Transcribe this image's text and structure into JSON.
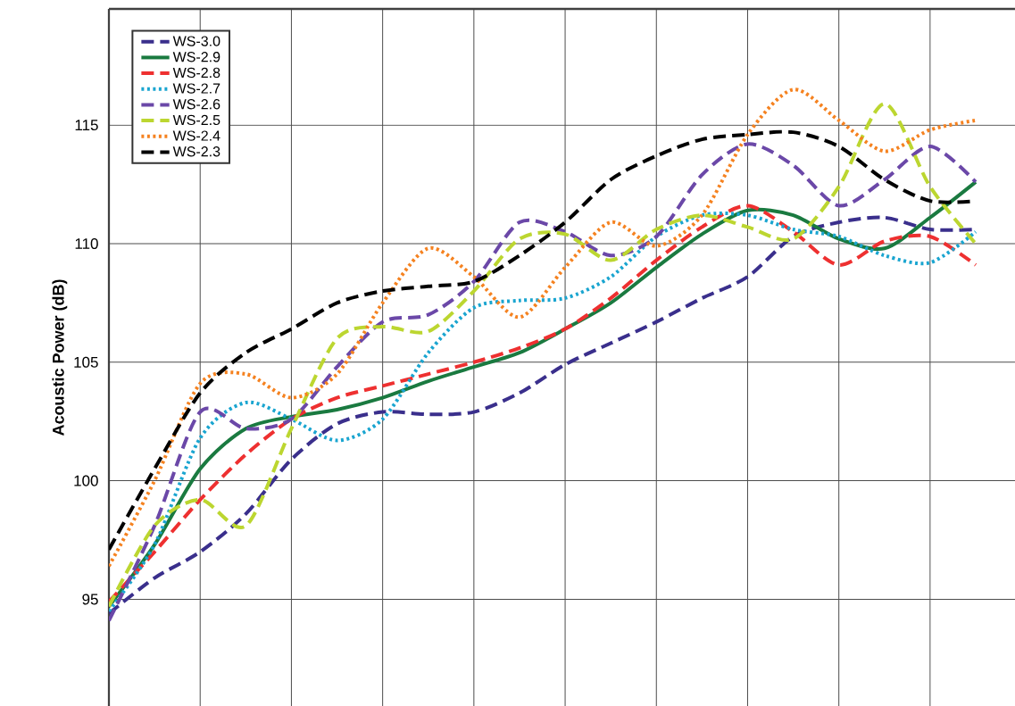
{
  "chart_data": {
    "type": "line",
    "ylabel": "Acoustic Power (dB)",
    "categories": [
      null,
      null,
      null,
      null,
      null,
      null,
      null,
      null,
      null,
      null,
      null,
      null,
      null,
      null,
      null,
      null,
      null,
      null,
      null,
      null
    ],
    "ylim": [
      90.5,
      119.9
    ],
    "yticks": [
      95,
      100,
      105,
      110,
      115
    ],
    "grid": true,
    "legend": "top left",
    "tick_labels": "y",
    "marker": "none",
    "series": [
      {
        "name": "WS-3.0",
        "color": "#3a2f8c",
        "line_style": "dashed",
        "values": [
          94.4,
          95.9,
          97.0,
          98.6,
          100.9,
          102.4,
          102.9,
          102.8,
          102.9,
          103.7,
          104.9,
          105.8,
          106.7,
          107.7,
          108.6,
          110.3,
          110.9,
          111.1,
          110.6,
          110.6
        ]
      },
      {
        "name": "WS-2.9",
        "color": "#1a7a40",
        "line_style": "solid",
        "values": [
          94.7,
          97.3,
          100.5,
          102.2,
          102.7,
          103.0,
          103.5,
          104.2,
          104.8,
          105.4,
          106.4,
          107.5,
          109.0,
          110.4,
          111.4,
          111.2,
          110.2,
          109.8,
          111.1,
          112.6
        ]
      },
      {
        "name": "WS-2.8",
        "color": "#ee3030",
        "line_style": "dashed",
        "values": [
          94.9,
          97.0,
          99.2,
          101.1,
          102.6,
          103.5,
          104.0,
          104.5,
          105.0,
          105.6,
          106.4,
          107.7,
          109.3,
          110.7,
          111.6,
          110.5,
          109.1,
          110.1,
          110.3,
          109.1
        ]
      },
      {
        "name": "WS-2.7",
        "color": "#1aa5d0",
        "line_style": "dotted",
        "values": [
          94.5,
          97.3,
          101.8,
          103.3,
          102.6,
          101.7,
          102.6,
          105.4,
          107.3,
          107.6,
          107.7,
          108.6,
          110.3,
          111.2,
          111.2,
          110.6,
          110.3,
          109.5,
          109.2,
          110.5
        ]
      },
      {
        "name": "WS-2.6",
        "color": "#6b48a8",
        "line_style": "dashed",
        "values": [
          94.1,
          98.1,
          102.9,
          102.2,
          102.6,
          104.8,
          106.7,
          107.0,
          108.4,
          110.9,
          110.5,
          109.5,
          110.3,
          112.9,
          114.2,
          113.3,
          111.6,
          112.7,
          114.1,
          112.6
        ]
      },
      {
        "name": "WS-2.5",
        "color": "#bcd630",
        "line_style": "dashed",
        "values": [
          94.7,
          98.1,
          99.2,
          98.1,
          102.2,
          106.0,
          106.5,
          106.3,
          108.0,
          110.2,
          110.4,
          109.3,
          110.6,
          111.2,
          110.7,
          110.2,
          112.4,
          115.9,
          112.4,
          110.0
        ]
      },
      {
        "name": "WS-2.4",
        "color": "#f58220",
        "line_style": "dotted",
        "values": [
          96.4,
          100.0,
          104.1,
          104.5,
          103.5,
          104.5,
          107.5,
          109.8,
          108.6,
          106.9,
          109.0,
          110.9,
          109.9,
          111.2,
          114.6,
          116.5,
          115.2,
          113.9,
          114.8,
          115.2
        ]
      },
      {
        "name": "WS-2.3",
        "color": "#000000",
        "line_style": "dashed",
        "values": [
          97.1,
          100.5,
          103.7,
          105.4,
          106.4,
          107.5,
          108.0,
          108.2,
          108.4,
          109.5,
          110.9,
          112.7,
          113.7,
          114.4,
          114.6,
          114.7,
          114.1,
          112.7,
          111.8,
          111.8
        ]
      }
    ]
  }
}
